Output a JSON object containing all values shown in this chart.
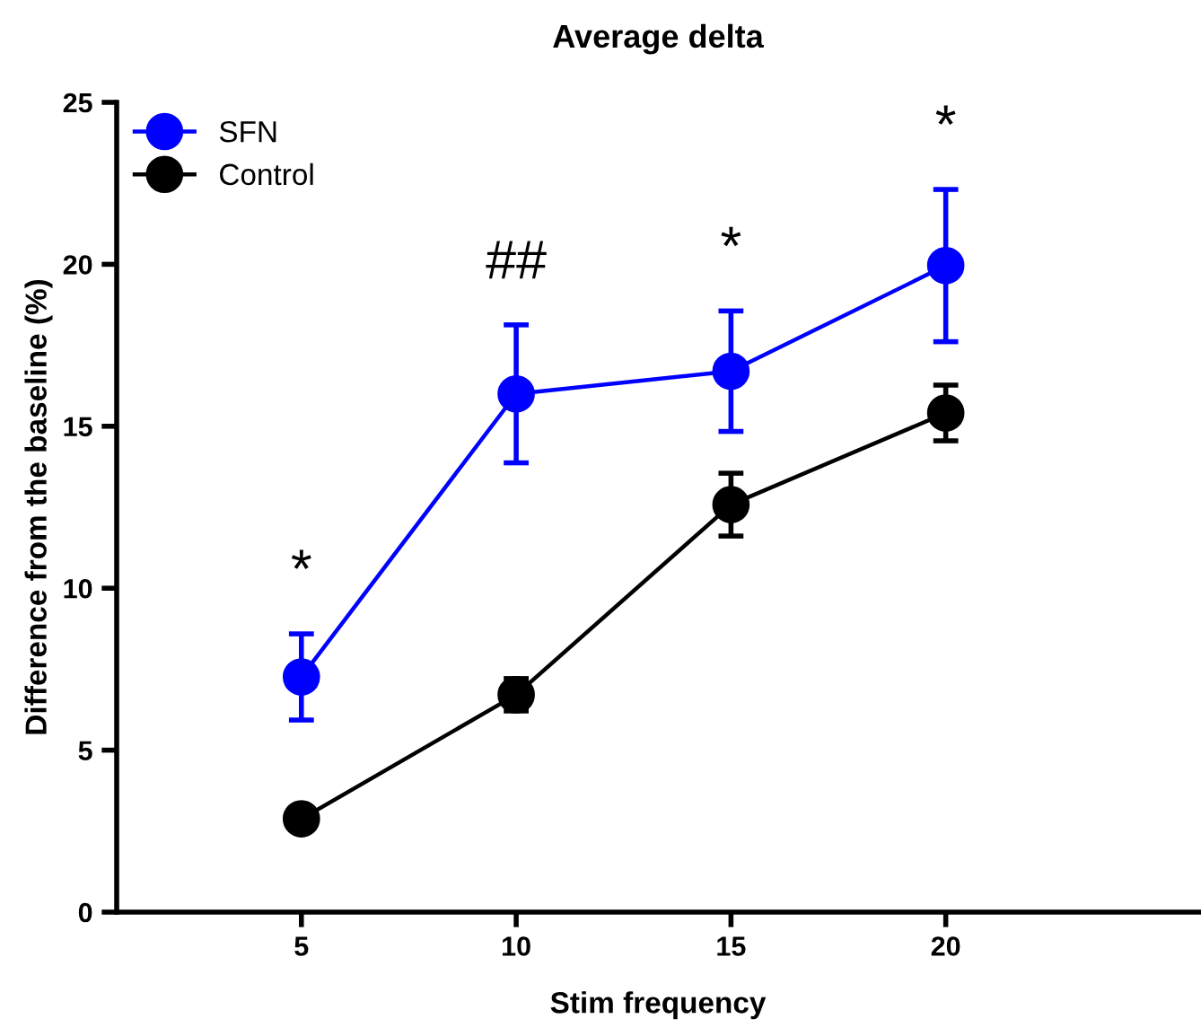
{
  "chart_data": {
    "type": "line",
    "title": "Average delta",
    "xlabel": "Stim frequency",
    "ylabel": "Difference from the baseline (%)",
    "x": [
      5,
      10,
      15,
      20
    ],
    "xlim": [
      0.7,
      25.9
    ],
    "xticks": [
      5,
      10,
      15,
      20
    ],
    "ylim": [
      0,
      25
    ],
    "yticks": [
      0,
      5,
      10,
      15,
      20,
      25
    ],
    "series": [
      {
        "name": "SFN",
        "color": "#0000ff",
        "values": [
          7.26,
          16.0,
          16.7,
          19.96
        ],
        "errors": [
          1.33,
          2.13,
          1.86,
          2.35
        ]
      },
      {
        "name": "Control",
        "color": "#000000",
        "values": [
          2.88,
          6.71,
          12.58,
          15.41
        ],
        "errors": [
          0.3,
          0.5,
          0.97,
          0.86
        ]
      }
    ],
    "annotations": [
      "*",
      "##",
      "*",
      "*"
    ],
    "marker": "circle",
    "line_style": "solid",
    "grid": false,
    "legend": "top left"
  }
}
